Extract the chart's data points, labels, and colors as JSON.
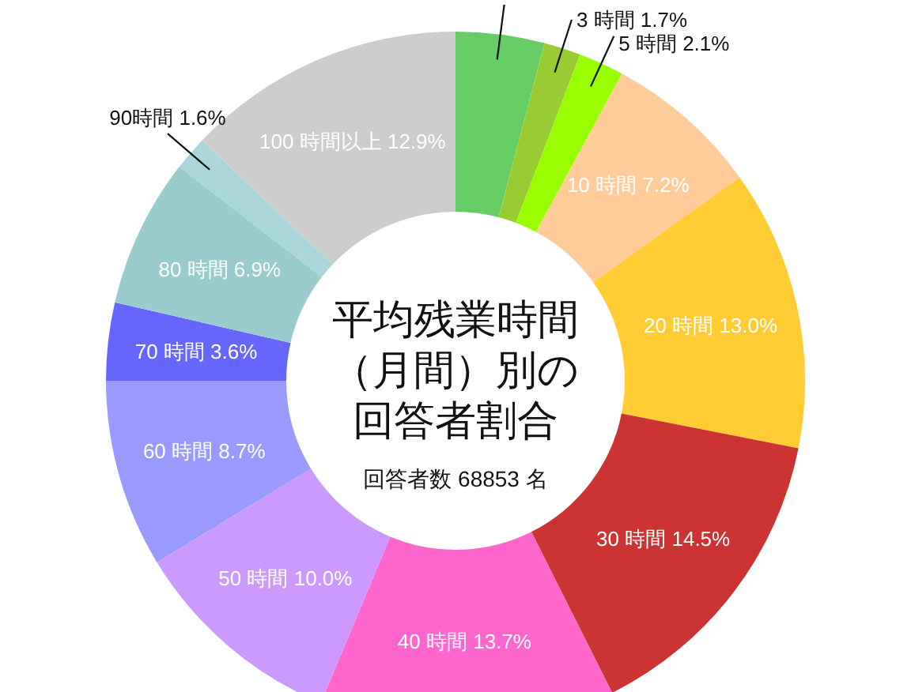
{
  "chart_data": {
    "type": "donut",
    "title": "平均残業時間（月間）別の回答者割合",
    "subtitle": "回答者数 68853 名",
    "categories": [
      null,
      "3 時間",
      "5 時間",
      "10 時間",
      "20 時間",
      "30 時間",
      "40 時間",
      "50 時間",
      "60 時間",
      "70 時間",
      "80 時間",
      "90時間",
      "100 時間以上"
    ],
    "values": [
      4.1,
      1.7,
      2.1,
      7.2,
      13.0,
      14.5,
      13.7,
      10.0,
      8.7,
      3.6,
      6.9,
      1.6,
      12.9
    ],
    "value_labels": [
      null,
      "1.7%",
      "2.1%",
      "7.2%",
      "13.0%",
      "14.5%",
      "13.7%",
      "10.0%",
      "8.7%",
      "3.6%",
      "6.9%",
      "1.6%",
      "12.9%"
    ],
    "colors": [
      "#66cc66",
      "#99cc33",
      "#99ff00",
      "#ffcc99",
      "#ffcc33",
      "#cc3333",
      "#ff66cc",
      "#cc99ff",
      "#9999ff",
      "#6666ff",
      "#99cccc",
      "#aad6da",
      "#cccccc"
    ]
  }
}
